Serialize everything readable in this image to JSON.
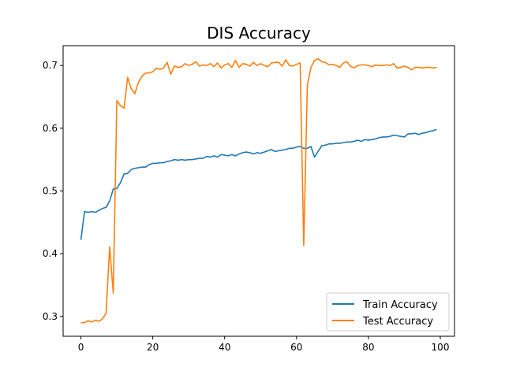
{
  "chart_data": {
    "type": "line",
    "title": "DIS Accuracy",
    "xlabel": "",
    "ylabel": "",
    "xlim": [
      -4.95,
      103.95
    ],
    "ylim": [
      0.2683,
      0.7316
    ],
    "xticks": [
      0,
      20,
      40,
      60,
      80,
      100
    ],
    "yticks": [
      0.3,
      0.4,
      0.5,
      0.6,
      0.7
    ],
    "xtick_labels": [
      "0",
      "20",
      "40",
      "60",
      "80",
      "100"
    ],
    "ytick_labels": [
      "0.3",
      "0.4",
      "0.5",
      "0.6",
      "0.7"
    ],
    "grid": false,
    "legend_position": "lower-right",
    "x": [
      0,
      1,
      2,
      3,
      4,
      5,
      6,
      7,
      8,
      9,
      10,
      11,
      12,
      13,
      14,
      15,
      16,
      17,
      18,
      19,
      20,
      21,
      22,
      23,
      24,
      25,
      26,
      27,
      28,
      29,
      30,
      31,
      32,
      33,
      34,
      35,
      36,
      37,
      38,
      39,
      40,
      41,
      42,
      43,
      44,
      45,
      46,
      47,
      48,
      49,
      50,
      51,
      52,
      53,
      54,
      55,
      56,
      57,
      58,
      59,
      60,
      61,
      62,
      63,
      64,
      65,
      66,
      67,
      68,
      69,
      70,
      71,
      72,
      73,
      74,
      75,
      76,
      77,
      78,
      79,
      80,
      81,
      82,
      83,
      84,
      85,
      86,
      87,
      88,
      89,
      90,
      91,
      92,
      93,
      94,
      95,
      96,
      97,
      98,
      99
    ],
    "series": [
      {
        "name": "Train Accuracy",
        "color": "#1f77b4",
        "values": [
          0.422,
          0.467,
          0.466,
          0.467,
          0.466,
          0.469,
          0.472,
          0.474,
          0.484,
          0.503,
          0.504,
          0.513,
          0.527,
          0.528,
          0.534,
          0.536,
          0.537,
          0.538,
          0.538,
          0.542,
          0.544,
          0.544,
          0.545,
          0.545,
          0.547,
          0.548,
          0.55,
          0.549,
          0.55,
          0.549,
          0.55,
          0.55,
          0.551,
          0.552,
          0.552,
          0.555,
          0.554,
          0.556,
          0.554,
          0.558,
          0.557,
          0.556,
          0.558,
          0.556,
          0.559,
          0.561,
          0.562,
          0.561,
          0.559,
          0.561,
          0.56,
          0.562,
          0.564,
          0.566,
          0.563,
          0.564,
          0.565,
          0.566,
          0.568,
          0.568,
          0.57,
          0.571,
          0.568,
          0.568,
          0.571,
          0.554,
          0.563,
          0.572,
          0.573,
          0.575,
          0.575,
          0.576,
          0.576,
          0.577,
          0.578,
          0.578,
          0.579,
          0.581,
          0.579,
          0.582,
          0.581,
          0.582,
          0.583,
          0.585,
          0.586,
          0.586,
          0.587,
          0.589,
          0.588,
          0.587,
          0.586,
          0.591,
          0.591,
          0.592,
          0.59,
          0.592,
          0.593,
          0.595,
          0.596,
          0.598
        ]
      },
      {
        "name": "Test Accuracy",
        "color": "#ff7f0e",
        "values": [
          0.29,
          0.29,
          0.293,
          0.291,
          0.294,
          0.292,
          0.296,
          0.305,
          0.411,
          0.337,
          0.644,
          0.636,
          0.632,
          0.681,
          0.663,
          0.655,
          0.673,
          0.683,
          0.688,
          0.688,
          0.69,
          0.696,
          0.694,
          0.696,
          0.705,
          0.686,
          0.699,
          0.697,
          0.698,
          0.703,
          0.7,
          0.702,
          0.706,
          0.699,
          0.701,
          0.7,
          0.703,
          0.698,
          0.704,
          0.696,
          0.701,
          0.703,
          0.697,
          0.708,
          0.697,
          0.703,
          0.702,
          0.699,
          0.705,
          0.7,
          0.703,
          0.7,
          0.698,
          0.704,
          0.705,
          0.705,
          0.699,
          0.709,
          0.7,
          0.699,
          0.702,
          0.704,
          0.413,
          0.668,
          0.697,
          0.708,
          0.711,
          0.706,
          0.705,
          0.701,
          0.702,
          0.7,
          0.697,
          0.704,
          0.706,
          0.699,
          0.696,
          0.7,
          0.701,
          0.701,
          0.7,
          0.698,
          0.701,
          0.7,
          0.7,
          0.701,
          0.7,
          0.703,
          0.696,
          0.697,
          0.699,
          0.697,
          0.693,
          0.697,
          0.697,
          0.696,
          0.697,
          0.697,
          0.696,
          0.697
        ]
      }
    ]
  }
}
